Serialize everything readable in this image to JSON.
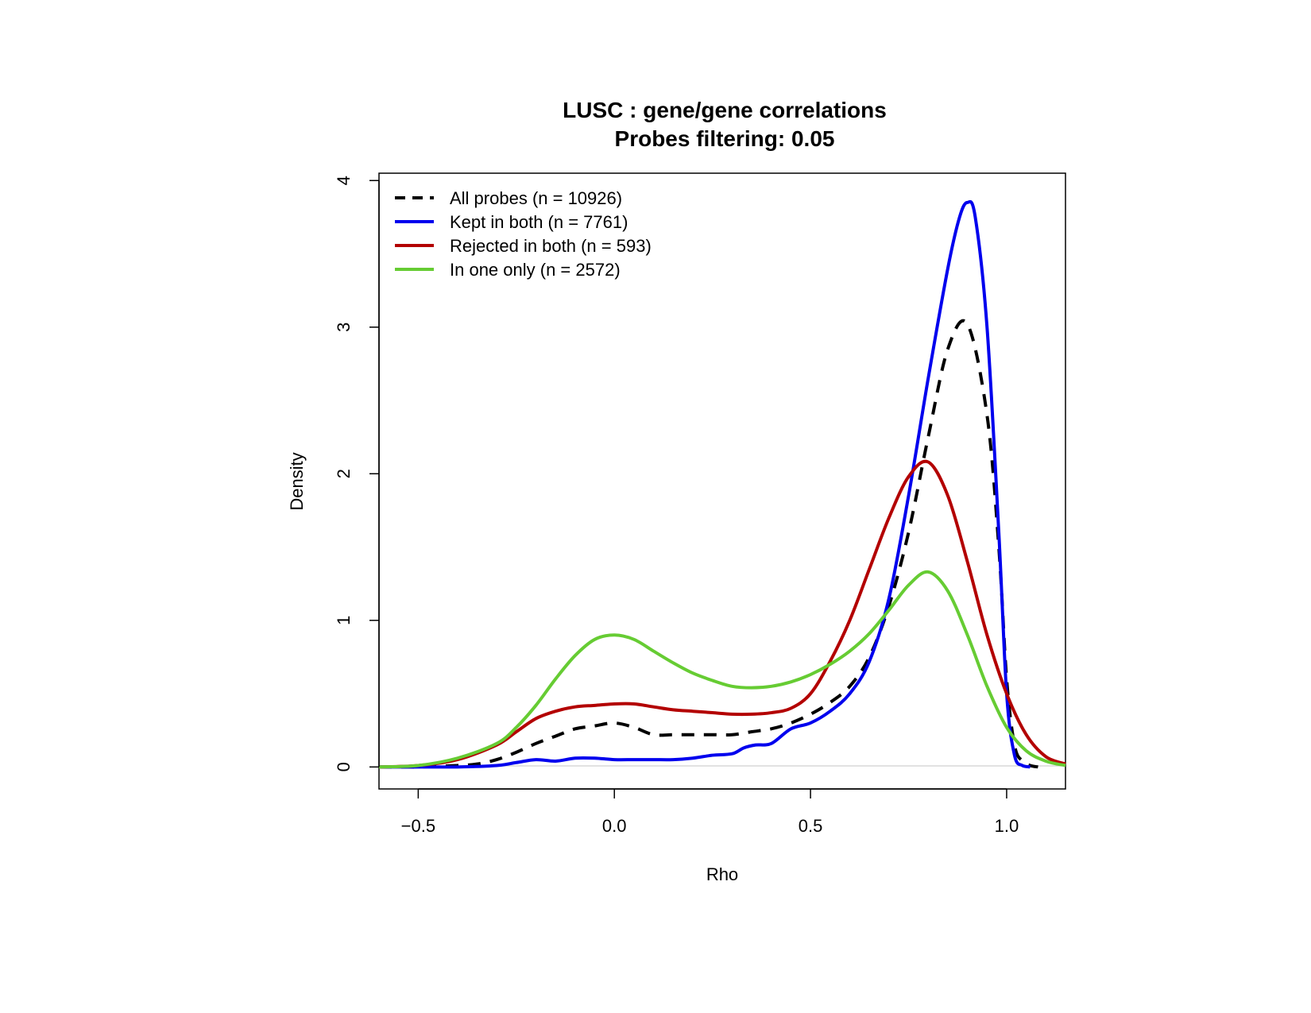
{
  "chart_data": {
    "type": "line",
    "title": "LUSC : gene/gene correlations",
    "subtitle": "Probes filtering: 0.05",
    "xlabel": "Rho",
    "ylabel": "Density",
    "xlim": [
      -0.6,
      1.15
    ],
    "ylim": [
      -0.15,
      4.05
    ],
    "x_ticks": [
      -0.5,
      0.0,
      0.5,
      1.0
    ],
    "x_tick_labels": [
      "−0.5",
      "0.0",
      "0.5",
      "1.0"
    ],
    "y_ticks": [
      0,
      1,
      2,
      3,
      4
    ],
    "y_tick_labels": [
      "0",
      "1",
      "2",
      "3",
      "4"
    ],
    "grid": false,
    "legend_position": "top-left",
    "series": [
      {
        "name": "All probes (n = 10926)",
        "color": "#000000",
        "dash": true,
        "x": [
          -0.6,
          -0.5,
          -0.4,
          -0.35,
          -0.3,
          -0.25,
          -0.2,
          -0.15,
          -0.1,
          -0.05,
          0.0,
          0.05,
          0.1,
          0.15,
          0.2,
          0.25,
          0.3,
          0.35,
          0.4,
          0.45,
          0.5,
          0.55,
          0.6,
          0.65,
          0.7,
          0.75,
          0.8,
          0.85,
          0.9,
          0.95,
          0.98,
          1.0,
          1.02,
          1.04,
          1.06,
          1.08
        ],
        "y": [
          0.0,
          0.0,
          0.01,
          0.02,
          0.05,
          0.1,
          0.16,
          0.21,
          0.26,
          0.28,
          0.3,
          0.27,
          0.22,
          0.22,
          0.22,
          0.22,
          0.22,
          0.24,
          0.26,
          0.3,
          0.36,
          0.44,
          0.55,
          0.75,
          1.1,
          1.6,
          2.25,
          2.85,
          3.02,
          2.4,
          1.5,
          0.6,
          0.15,
          0.04,
          0.01,
          0.0
        ]
      },
      {
        "name": "Kept in both (n = 7761)",
        "color": "#0000ee",
        "dash": false,
        "x": [
          -0.6,
          -0.5,
          -0.4,
          -0.3,
          -0.25,
          -0.2,
          -0.15,
          -0.1,
          -0.05,
          0.0,
          0.05,
          0.1,
          0.15,
          0.2,
          0.25,
          0.3,
          0.33,
          0.36,
          0.4,
          0.45,
          0.5,
          0.55,
          0.6,
          0.65,
          0.7,
          0.75,
          0.8,
          0.85,
          0.88,
          0.9,
          0.92,
          0.95,
          0.98,
          1.0,
          1.02,
          1.04,
          1.06
        ],
        "y": [
          0.0,
          0.0,
          0.0,
          0.01,
          0.03,
          0.05,
          0.04,
          0.06,
          0.06,
          0.05,
          0.05,
          0.05,
          0.05,
          0.06,
          0.08,
          0.09,
          0.13,
          0.15,
          0.16,
          0.26,
          0.3,
          0.38,
          0.5,
          0.72,
          1.15,
          1.85,
          2.65,
          3.4,
          3.75,
          3.85,
          3.75,
          3.0,
          1.6,
          0.5,
          0.08,
          0.01,
          0.0
        ]
      },
      {
        "name": "Rejected in both (n = 593)",
        "color": "#b30000",
        "dash": false,
        "x": [
          -0.6,
          -0.5,
          -0.4,
          -0.3,
          -0.25,
          -0.2,
          -0.15,
          -0.1,
          -0.05,
          0.0,
          0.05,
          0.1,
          0.15,
          0.2,
          0.25,
          0.3,
          0.35,
          0.4,
          0.45,
          0.5,
          0.55,
          0.6,
          0.65,
          0.7,
          0.75,
          0.8,
          0.85,
          0.9,
          0.95,
          1.0,
          1.05,
          1.1,
          1.15
        ],
        "y": [
          0.0,
          0.01,
          0.05,
          0.15,
          0.24,
          0.33,
          0.38,
          0.41,
          0.42,
          0.43,
          0.43,
          0.41,
          0.39,
          0.38,
          0.37,
          0.36,
          0.36,
          0.37,
          0.4,
          0.5,
          0.72,
          1.0,
          1.35,
          1.7,
          1.98,
          2.08,
          1.85,
          1.4,
          0.9,
          0.5,
          0.22,
          0.07,
          0.02
        ]
      },
      {
        "name": "In one only (n = 2572)",
        "color": "#66cc33",
        "dash": false,
        "x": [
          -0.6,
          -0.5,
          -0.4,
          -0.3,
          -0.25,
          -0.2,
          -0.15,
          -0.1,
          -0.05,
          0.0,
          0.05,
          0.1,
          0.15,
          0.2,
          0.25,
          0.3,
          0.35,
          0.4,
          0.45,
          0.5,
          0.55,
          0.6,
          0.65,
          0.7,
          0.75,
          0.8,
          0.85,
          0.9,
          0.95,
          1.0,
          1.05,
          1.1,
          1.15
        ],
        "y": [
          0.0,
          0.01,
          0.06,
          0.16,
          0.27,
          0.42,
          0.6,
          0.76,
          0.87,
          0.9,
          0.87,
          0.79,
          0.71,
          0.64,
          0.59,
          0.55,
          0.54,
          0.55,
          0.58,
          0.63,
          0.7,
          0.79,
          0.91,
          1.07,
          1.24,
          1.33,
          1.2,
          0.9,
          0.55,
          0.27,
          0.11,
          0.04,
          0.01
        ]
      }
    ]
  }
}
